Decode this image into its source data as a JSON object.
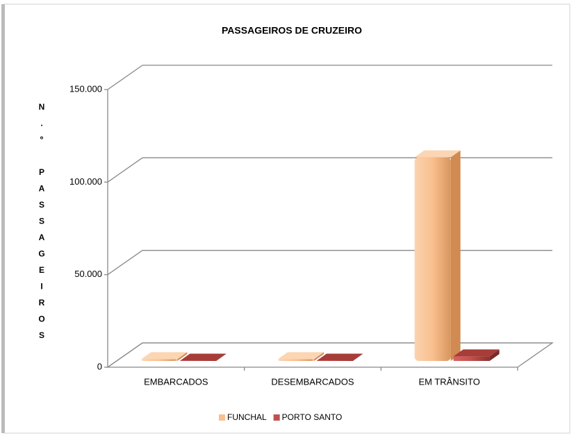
{
  "chart_data": {
    "type": "bar3d",
    "title": "PASSAGEIROS DE CRUZEIRO",
    "y_label": "N.º PASSAGEIROS",
    "categories": [
      "EMBARCADOS",
      "DESEMBARCADOS",
      "EM TRÂNSITO"
    ],
    "series": [
      {
        "name": "FUNCHAL",
        "color": "#f9bf8f",
        "values": [
          1000,
          1000,
          110000
        ]
      },
      {
        "name": "PORTO SANTO",
        "color": "#c0504d",
        "values": [
          200,
          200,
          2500
        ]
      }
    ],
    "ylim": [
      0,
      150000
    ],
    "yticks": [
      {
        "value": 0,
        "label": "0"
      },
      {
        "value": 50000,
        "label": "50.000"
      },
      {
        "value": 100000,
        "label": "100.000"
      },
      {
        "value": 150000,
        "label": "150.000"
      }
    ],
    "grid": true
  }
}
